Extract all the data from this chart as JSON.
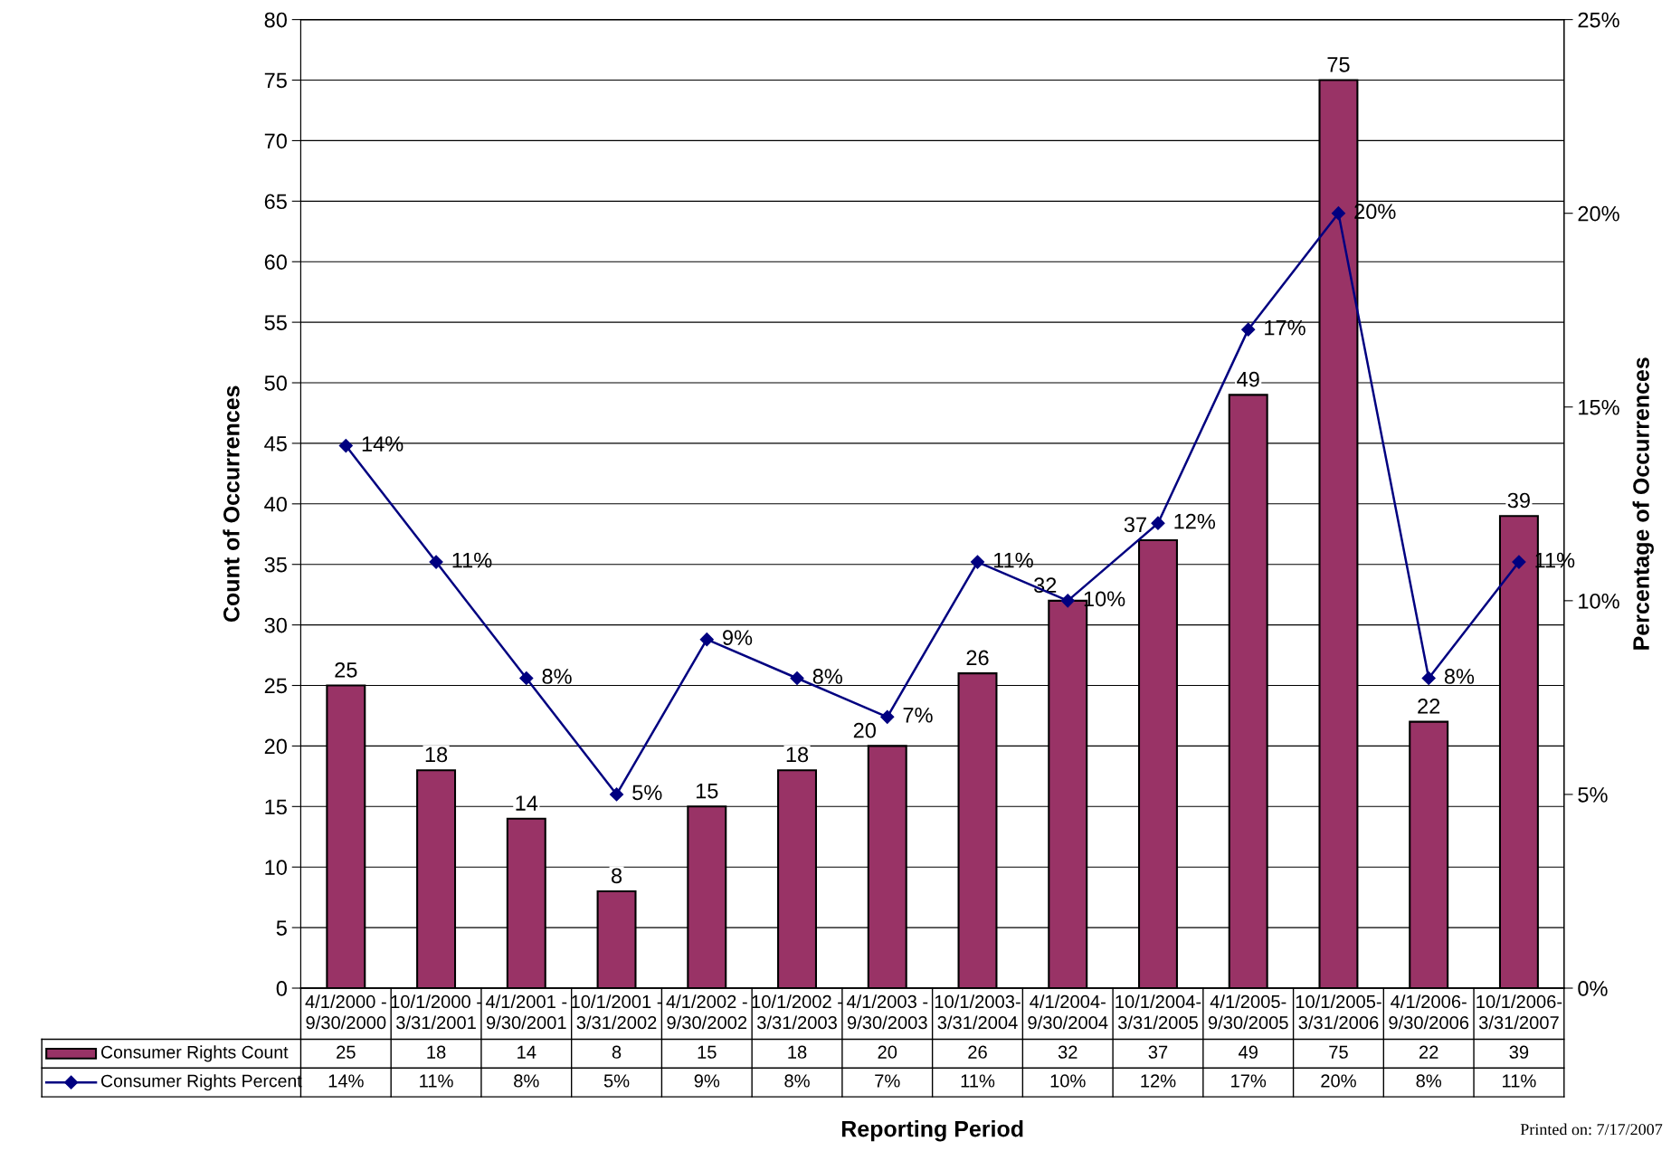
{
  "chart_data": {
    "type": "bar",
    "categories": [
      "4/1/2000 -\n9/30/2000",
      "10/1/2000 -\n3/31/2001",
      "4/1/2001 -\n9/30/2001",
      "10/1/2001 -\n3/31/2002",
      "4/1/2002 -\n9/30/2002",
      "10/1/2002 -\n3/31/2003",
      "4/1/2003 -\n9/30/2003",
      "10/1/2003-\n3/31/2004",
      "4/1/2004-\n9/30/2004",
      "10/1/2004-\n3/31/2005",
      "4/1/2005-\n9/30/2005",
      "10/1/2005-\n3/31/2006",
      "4/1/2006-\n9/30/2006",
      "10/1/2006-\n3/31/2007"
    ],
    "series": [
      {
        "name": "Consumer Rights Count",
        "color": "#993366",
        "values": [
          25,
          18,
          14,
          8,
          15,
          18,
          20,
          26,
          32,
          37,
          49,
          75,
          22,
          39
        ],
        "value_labels": [
          "25",
          "18",
          "14",
          "8",
          "15",
          "18",
          "20",
          "26",
          "32",
          "37",
          "49",
          "75",
          "22",
          "39"
        ]
      },
      {
        "name": "Consumer Rights Percent",
        "type": "line",
        "axis": "y2",
        "color": "#000080",
        "marker": "diamond",
        "values": [
          14,
          11,
          8,
          5,
          9,
          8,
          7,
          11,
          10,
          12,
          17,
          20,
          8,
          11
        ],
        "value_labels": [
          "14%",
          "11%",
          "8%",
          "5%",
          "9%",
          "8%",
          "7%",
          "11%",
          "10%",
          "12%",
          "17%",
          "20%",
          "8%",
          "11%"
        ]
      }
    ],
    "xlabel": "Reporting Period",
    "ylabel": "Count of Occurrences",
    "y2label": "Percentage of Occurrences",
    "ylim": [
      0,
      80
    ],
    "yticks": [
      0,
      5,
      10,
      15,
      20,
      25,
      30,
      35,
      40,
      45,
      50,
      55,
      60,
      65,
      70,
      75,
      80
    ],
    "y2lim": [
      0,
      25
    ],
    "y2ticks": [
      {
        "value": 0,
        "label": "0%"
      },
      {
        "value": 5,
        "label": "5%"
      },
      {
        "value": 10,
        "label": "10%"
      },
      {
        "value": 15,
        "label": "15%"
      },
      {
        "value": 20,
        "label": "20%"
      },
      {
        "value": 25,
        "label": "25%"
      }
    ],
    "grid": "y",
    "legend": "bottom left",
    "data_labels": true,
    "annotations": [
      "Printed on: 7/17/2007"
    ]
  }
}
